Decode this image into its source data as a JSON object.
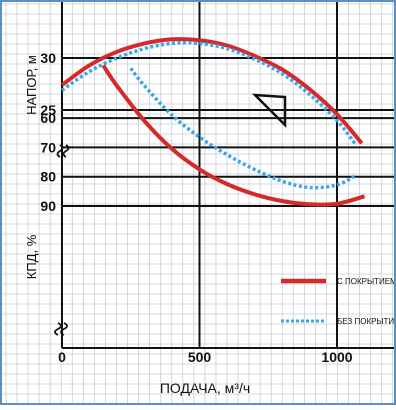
{
  "chart_data": [
    {
      "type": "line",
      "ylabel": "НАПОР, м",
      "yticks": [
        25,
        30
      ],
      "ylim": [
        22.6,
        33.0
      ],
      "series": [
        {
          "name": "С ПОКРЫТИЕМ",
          "color": "#d42a2a",
          "style": "solid",
          "x": [
            0,
            100,
            200,
            300,
            400,
            500,
            600,
            700,
            800,
            900,
            1000,
            1090
          ],
          "y": [
            27.4,
            29.3,
            30.6,
            31.4,
            31.8,
            31.7,
            31.2,
            30.2,
            28.9,
            27.0,
            24.6,
            21.8
          ]
        },
        {
          "name": "БЕЗ ПОКРЫТИЯ",
          "color": "#3aa6e6",
          "style": "dashed",
          "x": [
            0,
            100,
            200,
            300,
            400,
            500,
            600,
            700,
            800,
            900,
            1000,
            1070
          ],
          "y": [
            26.9,
            28.7,
            30.0,
            30.9,
            31.4,
            31.4,
            30.9,
            29.9,
            28.5,
            26.5,
            24.0,
            21.6
          ]
        }
      ]
    },
    {
      "type": "line",
      "ylabel": "КПД, %",
      "yticks": [
        60,
        70,
        80,
        90
      ],
      "ylim": [
        42,
        91
      ],
      "series": [
        {
          "name": "С ПОКРЫТИЕМ",
          "color": "#d42a2a",
          "style": "solid",
          "x": [
            150,
            200,
            300,
            400,
            500,
            600,
            700,
            800,
            900,
            1000,
            1100
          ],
          "y": [
            42,
            49,
            61,
            70.5,
            77.5,
            82.5,
            86,
            88.3,
            89.4,
            89.2,
            86.7
          ]
        },
        {
          "name": "БЕЗ ПОКРЫТИЯ",
          "color": "#3aa6e6",
          "style": "dashed",
          "x": [
            250,
            300,
            400,
            500,
            600,
            700,
            800,
            900,
            1000,
            1070
          ],
          "y": [
            43,
            49,
            59,
            66.5,
            72.5,
            77.5,
            81.5,
            83.7,
            82.8,
            79.5
          ]
        }
      ],
      "legend_placement": "right"
    }
  ],
  "x_axis": {
    "label": "ПОДАЧА, м³/ч",
    "ticks": [
      0,
      500,
      1000
    ],
    "xlim": [
      0,
      1100
    ]
  },
  "legend": [
    {
      "label": "С ПОКРЫТИЕМ",
      "color": "#d42a2a",
      "style": "solid"
    },
    {
      "label": "БЕЗ ПОКРЫТИЯ",
      "color": "#3aa6e6",
      "style": "dashed"
    }
  ],
  "grid": true,
  "colors": {
    "grid_minor": "#c9ccd4",
    "grid_major": "#111111",
    "border": "#5b8fc4"
  },
  "break_marks": [
    "axis-break-icon",
    "axis-break-icon"
  ],
  "operating_point_marker": "triangle-marker-icon"
}
